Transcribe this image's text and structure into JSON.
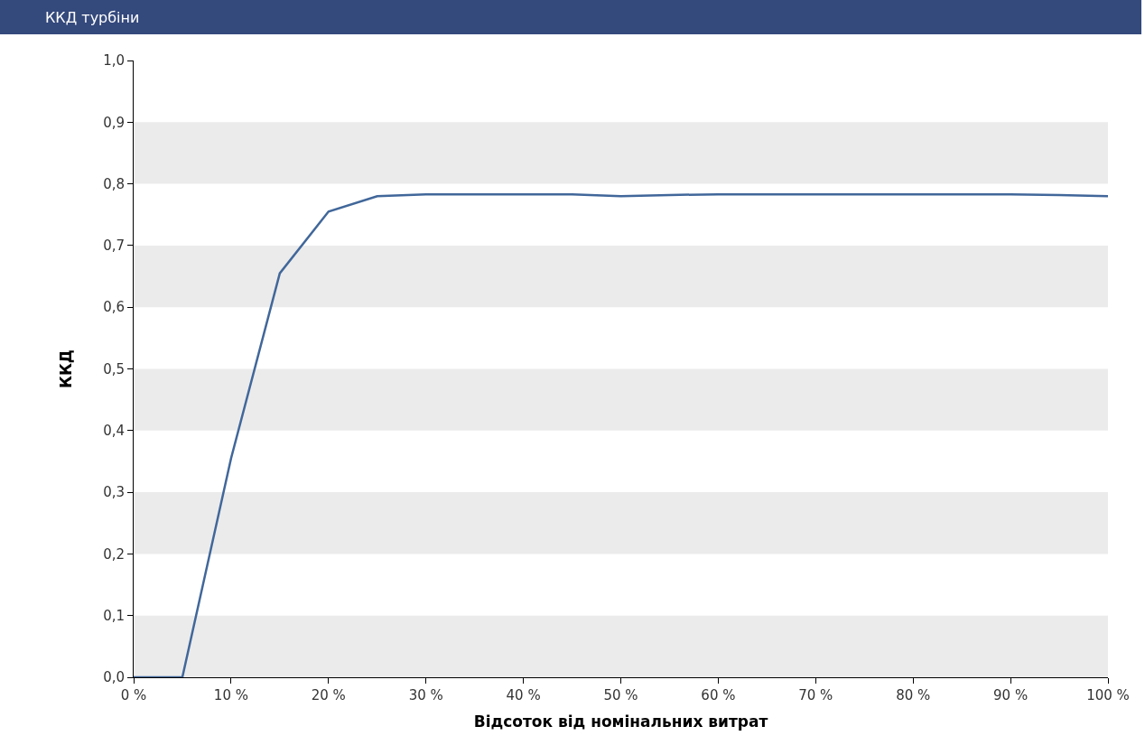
{
  "chart_data": {
    "type": "line",
    "title": "ККД турбіни",
    "xlabel": "Відсоток від номінальних витрат",
    "ylabel": "ККД",
    "x": [
      0,
      5,
      10,
      15,
      20,
      25,
      30,
      35,
      40,
      45,
      50,
      55,
      60,
      65,
      70,
      75,
      80,
      85,
      90,
      95,
      100
    ],
    "series": [
      {
        "color": "#41679a",
        "values": [
          0,
          0,
          0.355,
          0.655,
          0.755,
          0.78,
          0.783,
          0.783,
          0.783,
          0.783,
          0.78,
          0.782,
          0.783,
          0.783,
          0.783,
          0.783,
          0.783,
          0.783,
          0.783,
          0.782,
          0.78
        ]
      }
    ],
    "xlim": [
      0,
      100
    ],
    "xticks": [
      {
        "value": 0,
        "label": "0 %"
      },
      {
        "value": 10,
        "label": "10 %"
      },
      {
        "value": 20,
        "label": "20 %"
      },
      {
        "value": 30,
        "label": "30 %"
      },
      {
        "value": 40,
        "label": "40 %"
      },
      {
        "value": 50,
        "label": "50 %"
      },
      {
        "value": 60,
        "label": "60 %"
      },
      {
        "value": 70,
        "label": "70 %"
      },
      {
        "value": 80,
        "label": "80 %"
      },
      {
        "value": 90,
        "label": "90 %"
      },
      {
        "value": 100,
        "label": "100 %"
      }
    ],
    "ylim": [
      0,
      1
    ],
    "yticks": [
      {
        "value": 0,
        "label": "0,0"
      },
      {
        "value": 0.1,
        "label": "0,1"
      },
      {
        "value": 0.2,
        "label": "0,2"
      },
      {
        "value": 0.3,
        "label": "0,3"
      },
      {
        "value": 0.4,
        "label": "0,4"
      },
      {
        "value": 0.5,
        "label": "0,5"
      },
      {
        "value": 0.6,
        "label": "0,6"
      },
      {
        "value": 0.7,
        "label": "0,7"
      },
      {
        "value": 0.8,
        "label": "0,8"
      },
      {
        "value": 0.9,
        "label": "0,9"
      },
      {
        "value": 1,
        "label": "1,0"
      }
    ],
    "bands": [
      {
        "axis": "y",
        "from": 0,
        "to": 0.1,
        "color": "#ebebeb"
      },
      {
        "axis": "y",
        "from": 0.2,
        "to": 0.3,
        "color": "#ebebeb"
      },
      {
        "axis": "y",
        "from": 0.4,
        "to": 0.5,
        "color": "#ebebeb"
      },
      {
        "axis": "y",
        "from": 0.6,
        "to": 0.7,
        "color": "#ebebeb"
      },
      {
        "axis": "y",
        "from": 0.8,
        "to": 0.9,
        "color": "#ebebeb"
      }
    ],
    "grid": false,
    "marker": "none",
    "line_style": "solid"
  }
}
